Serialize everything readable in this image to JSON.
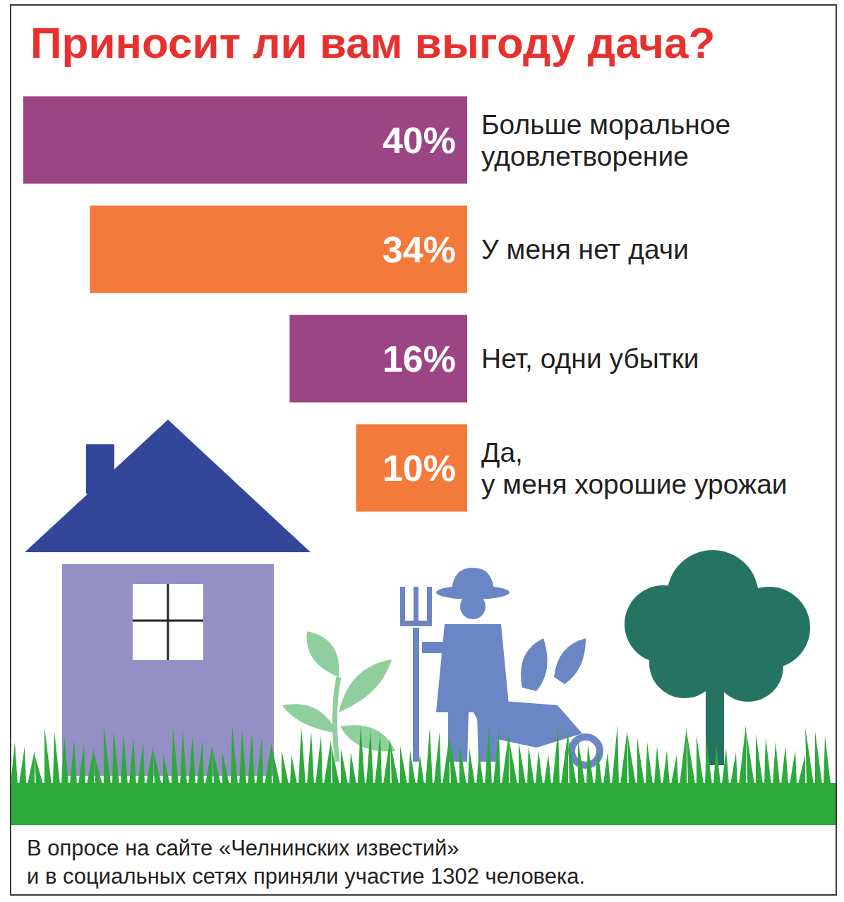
{
  "chart_data": {
    "type": "bar",
    "title": "Приносит ли вам выгоду дача?",
    "orientation": "horizontal",
    "categories": [
      "Больше моральное\nудовлетворение",
      "У меня нет дачи",
      "Нет, одни убытки",
      "Да,\nу меня хорошие урожаи"
    ],
    "values": [
      40,
      34,
      16,
      10
    ],
    "value_labels": [
      "40%",
      "34%",
      "16%",
      "10%"
    ],
    "colors": [
      "#9c4584",
      "#f37a3b",
      "#9c4584",
      "#f37a3b"
    ],
    "xlim": [
      0,
      40
    ],
    "xticks": [
      0,
      10,
      20,
      30,
      40
    ],
    "tick_labels": "y",
    "grid": false,
    "data_labels": true,
    "annotations": [
      "В опросе на сайте «Челнинских известий»\nи в социальных сетях приняли участие 1302 человека."
    ]
  }
}
